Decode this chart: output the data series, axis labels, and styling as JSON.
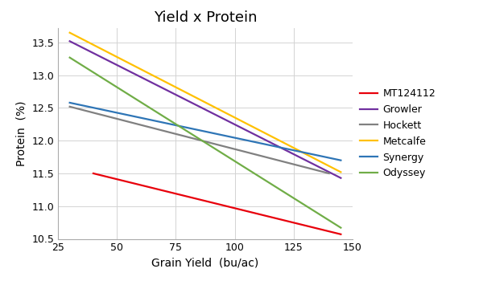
{
  "title": "Yield x Protein",
  "xlabel": "Grain Yield",
  "xlabel_unit": "  (bu/ac)",
  "ylabel": "Protein  (%)",
  "xlim": [
    25,
    150
  ],
  "ylim": [
    10.5,
    13.72
  ],
  "xticks": [
    25,
    50,
    75,
    100,
    125,
    150
  ],
  "yticks": [
    10.5,
    11.0,
    11.5,
    12.0,
    12.5,
    13.0,
    13.5
  ],
  "series": [
    {
      "name": "MT124112",
      "color": "#e8000b",
      "x": [
        40,
        145
      ],
      "y": [
        11.5,
        10.57
      ]
    },
    {
      "name": "Growler",
      "color": "#7030a0",
      "x": [
        30,
        145
      ],
      "y": [
        13.52,
        11.43
      ]
    },
    {
      "name": "Hockett",
      "color": "#808080",
      "x": [
        30,
        140
      ],
      "y": [
        12.52,
        11.5
      ]
    },
    {
      "name": "Metcalfe",
      "color": "#ffc000",
      "x": [
        30,
        145
      ],
      "y": [
        13.65,
        11.52
      ]
    },
    {
      "name": "Synergy",
      "color": "#2e75b6",
      "x": [
        30,
        145
      ],
      "y": [
        12.58,
        11.7
      ]
    },
    {
      "name": "Odyssey",
      "color": "#70ad47",
      "x": [
        30,
        145
      ],
      "y": [
        13.27,
        10.67
      ]
    }
  ],
  "background_color": "#ffffff",
  "grid_color": "#d3d3d3",
  "title_fontsize": 13,
  "axis_label_fontsize": 10,
  "tick_fontsize": 9,
  "legend_fontsize": 9,
  "line_width": 1.6
}
